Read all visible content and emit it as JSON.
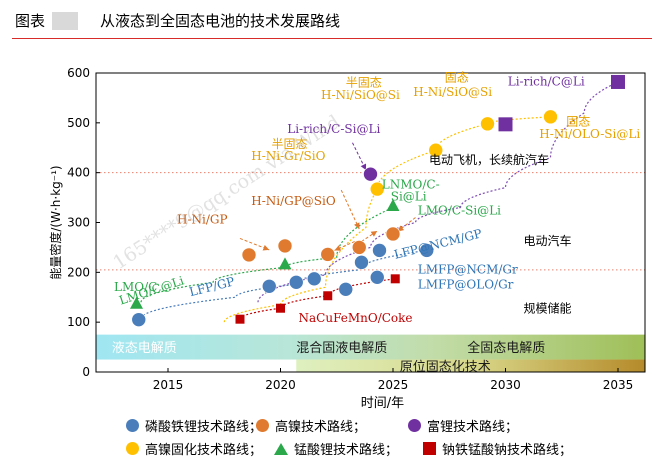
{
  "header": {
    "figure_label": "图表",
    "figure_title": "从液态到全固态电池的技术发展路线"
  },
  "watermark": "165****9@qq.com via Wind",
  "chart_data": {
    "type": "scatter",
    "title": "从液态到全固态电池的技术发展路线",
    "xlabel": "时间/年",
    "ylabel": "能量密度/(W·h·kg⁻¹)",
    "xlim": [
      2011.8,
      2036.2
    ],
    "ylim": [
      0,
      600
    ],
    "xticks": [
      2015,
      2020,
      2025,
      2030,
      2035
    ],
    "yticks": [
      0,
      100,
      200,
      300,
      400,
      500,
      600
    ],
    "grid": false,
    "legend_position": "bottom",
    "colors": {
      "lfp": "#4a7ebb",
      "high_ni": "#e07a2e",
      "li_rich": "#7030a0",
      "high_ni_solid": "#ffc000",
      "lmo": "#2aa84a",
      "na": "#c00000",
      "label_blue": "#2e75b6",
      "label_orange": "#c55a11",
      "label_green": "#2aa84a",
      "label_purple": "#7030a0",
      "label_gold": "#e6a100",
      "label_red": "#c00000",
      "ref_line": "#e8806c",
      "curve": "#7f4fb5"
    },
    "series": [
      {
        "name": "磷酸铁锂技术路线",
        "marker": "circle",
        "color_key": "lfp",
        "points": [
          [
            2013.7,
            105
          ],
          [
            2019.5,
            172
          ],
          [
            2020.7,
            180
          ],
          [
            2021.5,
            187
          ],
          [
            2022.9,
            166
          ],
          [
            2023.6,
            220
          ],
          [
            2024.3,
            190
          ],
          [
            2024.4,
            244
          ],
          [
            2026.5,
            244
          ]
        ]
      },
      {
        "name": "高镍技术路线",
        "marker": "circle",
        "color_key": "high_ni",
        "points": [
          [
            2018.6,
            235
          ],
          [
            2020.2,
            253
          ],
          [
            2022.1,
            236
          ],
          [
            2023.5,
            250
          ],
          [
            2025.0,
            277
          ]
        ]
      },
      {
        "name": "富锂技术路线",
        "marker": "mixed",
        "color_key": "li_rich",
        "points": [
          [
            2024.0,
            397
          ],
          [
            2030.0,
            497
          ],
          [
            2035.0,
            582
          ]
        ]
      },
      {
        "name": "高镍固化技术路线",
        "marker": "circle",
        "color_key": "high_ni_solid",
        "points": [
          [
            2024.3,
            367
          ],
          [
            2026.9,
            445
          ],
          [
            2029.2,
            498
          ],
          [
            2032.0,
            512
          ]
        ]
      },
      {
        "name": "锰酸锂技术路线",
        "marker": "triangle",
        "color_key": "lmo",
        "points": [
          [
            2013.6,
            137
          ],
          [
            2020.2,
            216
          ],
          [
            2025.0,
            333
          ]
        ]
      },
      {
        "name": "钠铁锰酸钠技术路线",
        "marker": "square",
        "color_key": "na",
        "points": [
          [
            2018.2,
            106
          ],
          [
            2020.0,
            128
          ],
          [
            2022.1,
            153
          ],
          [
            2025.1,
            187
          ]
        ]
      }
    ],
    "annotations": {
      "lfp_labels": [
        "LFP/GP",
        "LFP@NCM/GP",
        "LMFP@NCM/Gr",
        "LMFP@OLO/Gr"
      ],
      "lmo_labels": [
        "LMO/C",
        "LMO/C@Li",
        "LNMO/C-Si@Li",
        "LMO/C-Si@Li"
      ],
      "high_ni_labels": [
        "H-Ni/GP",
        "H-Ni/GP@SiO"
      ],
      "solid_labels": [
        "半固态",
        "H-Ni-Gr/SiO",
        "半固态",
        "H-Ni/SiO@Si",
        "固态",
        "H-Ni/SiO@Si",
        "固态",
        "H-Ni/OLO-Si@Li"
      ],
      "li_rich_labels": [
        "Li-rich/C-Si@Li",
        "Li-rich/C@Li"
      ],
      "na_label": "NaCuFeMnO/Coke",
      "scenarios": [
        "电动飞机，长续航汽车",
        "电动汽车",
        "规模储能"
      ],
      "subscript_x": "x"
    },
    "stage_bands": {
      "liquid": "液态电解质",
      "mixed": "混合固液电解质",
      "solid": "全固态电解质",
      "in_situ": "原位固态化技术"
    },
    "reference_lines_y": [
      400,
      205
    ]
  },
  "legend": [
    {
      "label": "磷酸铁锂技术路线；",
      "color": "#4a7ebb",
      "shape": "circle"
    },
    {
      "label": "高镍技术路线；",
      "color": "#e07a2e",
      "shape": "circle"
    },
    {
      "label": "富锂技术路线；",
      "color": "#7030a0",
      "shape": "circle"
    },
    {
      "label": "高镍固化技术路线；",
      "color": "#ffc000",
      "shape": "circle"
    },
    {
      "label": "锰酸锂技术路线；",
      "color": "#2aa84a",
      "shape": "triangle"
    },
    {
      "label": "钠铁锰酸钠技术路线；",
      "color": "#c00000",
      "shape": "square"
    }
  ]
}
